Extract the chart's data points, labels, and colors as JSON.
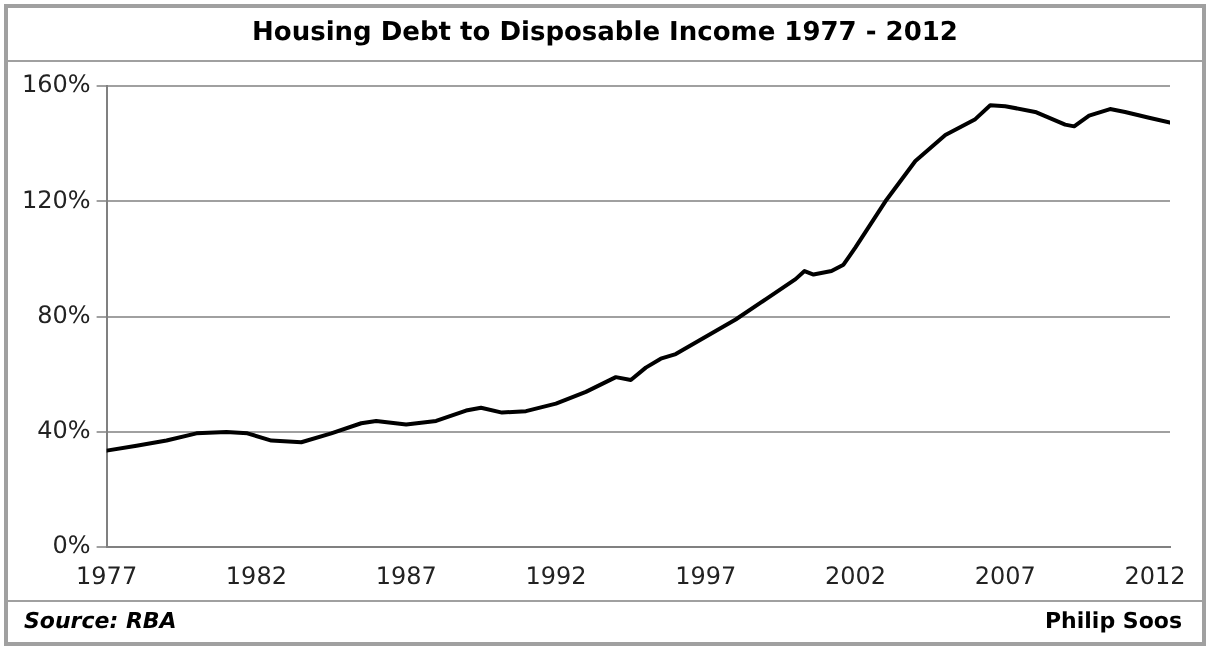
{
  "chart_data": {
    "type": "line",
    "title": "Housing Debt to Disposable Income 1977 - 2012",
    "x": [
      1977,
      1978,
      1979,
      1980,
      1981,
      1981.7,
      1982.5,
      1983.5,
      1984.5,
      1985.5,
      1986,
      1987,
      1988,
      1989,
      1989.5,
      1990.2,
      1991,
      1992,
      1993,
      1994,
      1994.5,
      1995,
      1995.5,
      1996,
      1997,
      1998,
      1999,
      2000,
      2000.3,
      2000.6,
      2001.2,
      2001.6,
      2002,
      2003,
      2004,
      2005,
      2006,
      2006.5,
      2007,
      2008,
      2009,
      2009.3,
      2009.8,
      2010.5,
      2011,
      2011.8,
      2012.5
    ],
    "series": [
      {
        "color": "#000000",
        "values": [
          33.5,
          35.2,
          37,
          39.5,
          40,
          39.5,
          37,
          36.4,
          39.5,
          43,
          43.8,
          42.6,
          43.8,
          47.4,
          48.4,
          46.7,
          47.2,
          49.8,
          53.9,
          59,
          58,
          62.3,
          65.4,
          67,
          73,
          79,
          86,
          93,
          95.8,
          94.6,
          95.8,
          98,
          104,
          120,
          134,
          143,
          148.5,
          153.3,
          153,
          151,
          146.6,
          146,
          149.7,
          152,
          151,
          149,
          147.3
        ]
      }
    ],
    "xlim": [
      1977,
      2012.5
    ],
    "xticks": [
      1977,
      1982,
      1987,
      1992,
      1997,
      2002,
      2007,
      2012
    ],
    "ylim": [
      0,
      160
    ],
    "yticks": [
      {
        "value": 0,
        "label": "0%"
      },
      {
        "value": 40,
        "label": "40%"
      },
      {
        "value": 80,
        "label": "80%"
      },
      {
        "value": 120,
        "label": "120%"
      },
      {
        "value": 160,
        "label": "160%"
      }
    ],
    "grid": "y",
    "legend": false,
    "marker": "none",
    "line_style": "solid",
    "annotations": [
      "Source: RBA",
      "Philip Soos"
    ]
  }
}
